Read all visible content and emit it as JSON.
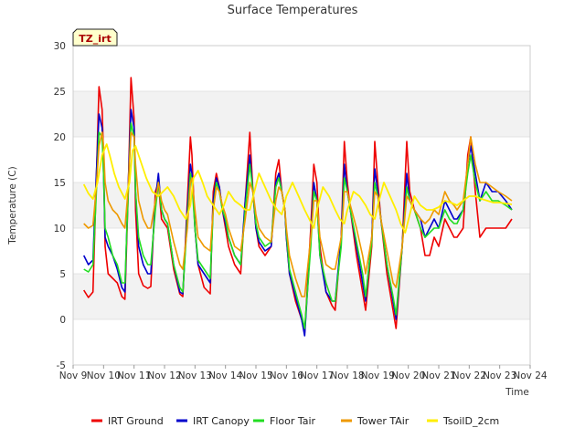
{
  "chart_data": {
    "type": "line",
    "title": "Surface Temperatures",
    "badge": "TZ_irt",
    "xlabel": "Time",
    "ylabel": "Temperature (C)",
    "xlim": [
      9,
      24
    ],
    "ylim": [
      -5,
      30
    ],
    "yticks": [
      -5,
      0,
      5,
      10,
      15,
      20,
      25,
      30
    ],
    "xticks": [
      {
        "x": 9,
        "label": "Nov 9"
      },
      {
        "x": 10,
        "label": "Nov 10"
      },
      {
        "x": 11,
        "label": "Nov 11"
      },
      {
        "x": 12,
        "label": "Nov 12"
      },
      {
        "x": 13,
        "label": "Nov 13"
      },
      {
        "x": 14,
        "label": "Nov 14"
      },
      {
        "x": 15,
        "label": "Nov 15"
      },
      {
        "x": 16,
        "label": "Nov 16"
      },
      {
        "x": 17,
        "label": "Nov 17"
      },
      {
        "x": 18,
        "label": "Nov 18"
      },
      {
        "x": 19,
        "label": "Nov 19"
      },
      {
        "x": 20,
        "label": "Nov 20"
      },
      {
        "x": 21,
        "label": "Nov 21"
      },
      {
        "x": 22,
        "label": "Nov 22"
      },
      {
        "x": 23,
        "label": "Nov 23"
      },
      {
        "x": 24,
        "label": "Nov 24"
      }
    ],
    "grid": true,
    "legend_position": "bottom",
    "series": [
      {
        "name": "IRT Ground",
        "color": "#ee0000",
        "x": [
          9.35,
          9.5,
          9.65,
          9.75,
          9.85,
          9.95,
          10.0,
          10.05,
          10.15,
          10.3,
          10.45,
          10.6,
          10.7,
          10.8,
          10.9,
          11.0,
          11.05,
          11.15,
          11.3,
          11.45,
          11.55,
          11.7,
          11.8,
          11.9,
          12.0,
          12.1,
          12.3,
          12.5,
          12.6,
          12.75,
          12.85,
          12.9,
          13.0,
          13.1,
          13.3,
          13.5,
          13.6,
          13.7,
          13.8,
          13.9,
          14.0,
          14.1,
          14.3,
          14.5,
          14.65,
          14.8,
          14.9,
          15.0,
          15.1,
          15.3,
          15.5,
          15.65,
          15.75,
          15.85,
          15.95,
          16.0,
          16.1,
          16.3,
          16.5,
          16.6,
          16.8,
          16.9,
          17.0,
          17.1,
          17.3,
          17.5,
          17.6,
          17.8,
          17.9,
          18.0,
          18.1,
          18.3,
          18.5,
          18.6,
          18.8,
          18.9,
          19.0,
          19.1,
          19.3,
          19.5,
          19.6,
          19.8,
          19.95,
          20.05,
          20.2,
          20.4,
          20.55,
          20.7,
          20.85,
          21.0,
          21.2,
          21.35,
          21.5,
          21.6,
          21.8,
          21.95,
          22.05,
          22.2,
          22.35,
          22.55,
          22.75,
          22.95,
          23.2,
          23.4
        ],
        "y": [
          3.2,
          2.4,
          3.0,
          14,
          25.5,
          23,
          18,
          8,
          5,
          4.5,
          4,
          2.5,
          2.2,
          13,
          26.5,
          22,
          12,
          5,
          3.7,
          3.4,
          3.6,
          14,
          15,
          11,
          10.5,
          10,
          5.5,
          2.8,
          2.5,
          13,
          20,
          18,
          10,
          6,
          3.5,
          2.8,
          14,
          16,
          14.5,
          12,
          10,
          8,
          6,
          5,
          13,
          20.5,
          14,
          10,
          8,
          7,
          8,
          16,
          17.5,
          14,
          12,
          9,
          5,
          2,
          0,
          -1.5,
          10,
          17,
          15,
          8,
          3,
          1.5,
          1,
          9,
          19.5,
          15,
          12,
          7,
          3,
          1,
          8,
          19.5,
          15,
          11,
          5,
          1,
          -1,
          8,
          19.5,
          14,
          12,
          10,
          7,
          7,
          9,
          8,
          11,
          10,
          9,
          9,
          10,
          18,
          20,
          14,
          9,
          10,
          10,
          10,
          10,
          11
        ]
      },
      {
        "name": "IRT Canopy",
        "color": "#0000cc",
        "x": [
          9.35,
          9.5,
          9.65,
          9.75,
          9.85,
          9.95,
          10.0,
          10.05,
          10.15,
          10.3,
          10.45,
          10.6,
          10.7,
          10.8,
          10.9,
          11.0,
          11.05,
          11.15,
          11.3,
          11.45,
          11.55,
          11.7,
          11.8,
          11.9,
          12.0,
          12.1,
          12.3,
          12.5,
          12.6,
          12.75,
          12.85,
          12.9,
          13.0,
          13.1,
          13.3,
          13.5,
          13.6,
          13.7,
          13.8,
          13.9,
          14.0,
          14.1,
          14.3,
          14.5,
          14.65,
          14.8,
          14.9,
          15.0,
          15.1,
          15.3,
          15.5,
          15.65,
          15.75,
          15.85,
          15.95,
          16.0,
          16.1,
          16.3,
          16.5,
          16.6,
          16.8,
          16.9,
          17.0,
          17.1,
          17.3,
          17.5,
          17.6,
          17.8,
          17.9,
          18.0,
          18.1,
          18.3,
          18.5,
          18.6,
          18.8,
          18.9,
          19.0,
          19.1,
          19.3,
          19.5,
          19.6,
          19.8,
          19.95,
          20.05,
          20.2,
          20.4,
          20.55,
          20.7,
          20.85,
          21.0,
          21.2,
          21.35,
          21.5,
          21.6,
          21.8,
          21.95,
          22.05,
          22.2,
          22.35,
          22.55,
          22.75,
          22.95,
          23.2,
          23.4
        ],
        "y": [
          7,
          6,
          6.5,
          15,
          22.5,
          21,
          16,
          9,
          8,
          7,
          5.5,
          3.5,
          3,
          14,
          23,
          21,
          14,
          8,
          6,
          5,
          5,
          13,
          16,
          12,
          11,
          10.5,
          6,
          3,
          2.8,
          12,
          17,
          16,
          10,
          6,
          5,
          4,
          13,
          15.5,
          14.5,
          12,
          10.5,
          9,
          7,
          6,
          13,
          18,
          14,
          10,
          8.5,
          7.5,
          8,
          15,
          16,
          14,
          12,
          9,
          5,
          2.5,
          0,
          -1.8,
          9,
          15,
          13,
          7,
          3,
          2,
          2,
          9,
          17,
          14,
          12,
          8,
          4,
          2,
          9,
          16.5,
          14,
          11,
          6,
          2,
          0,
          8,
          16,
          13,
          12,
          11,
          9,
          10,
          11,
          10,
          13,
          12,
          11,
          11,
          12,
          17,
          19,
          16,
          13,
          15,
          14,
          14,
          13,
          12
        ]
      },
      {
        "name": "Floor Tair",
        "color": "#22dd22",
        "x": [
          9.35,
          9.5,
          9.65,
          9.75,
          9.85,
          9.95,
          10.0,
          10.05,
          10.15,
          10.3,
          10.45,
          10.6,
          10.7,
          10.8,
          10.9,
          11.0,
          11.05,
          11.15,
          11.3,
          11.45,
          11.55,
          11.7,
          11.8,
          11.9,
          12.0,
          12.1,
          12.3,
          12.5,
          12.6,
          12.75,
          12.85,
          12.9,
          13.0,
          13.1,
          13.3,
          13.5,
          13.6,
          13.7,
          13.8,
          13.9,
          14.0,
          14.1,
          14.3,
          14.5,
          14.65,
          14.8,
          14.9,
          15.0,
          15.1,
          15.3,
          15.5,
          15.65,
          15.75,
          15.85,
          15.95,
          16.0,
          16.1,
          16.3,
          16.5,
          16.6,
          16.8,
          16.9,
          17.0,
          17.1,
          17.3,
          17.5,
          17.6,
          17.8,
          17.9,
          18.0,
          18.1,
          18.3,
          18.5,
          18.6,
          18.8,
          18.9,
          19.0,
          19.1,
          19.3,
          19.5,
          19.6,
          19.8,
          19.95,
          20.05,
          20.2,
          20.4,
          20.55,
          20.7,
          20.85,
          21.0,
          21.2,
          21.35,
          21.5,
          21.6,
          21.8,
          21.95,
          22.05,
          22.2,
          22.35,
          22.55,
          22.75,
          22.95,
          23.2,
          23.4
        ],
        "y": [
          5.5,
          5.2,
          6,
          13,
          20.5,
          20,
          16,
          10,
          9,
          7,
          6,
          4,
          4,
          13,
          21.5,
          20,
          14,
          9,
          7,
          6,
          6,
          12,
          15,
          12,
          11,
          10.5,
          6,
          3.5,
          3,
          11,
          16,
          15,
          10,
          6.5,
          5.5,
          4.5,
          12,
          15,
          14,
          12,
          11,
          9,
          7,
          6,
          12,
          17,
          14,
          10.5,
          9,
          8,
          8.5,
          14.5,
          15.5,
          14,
          12,
          9.5,
          5.5,
          3,
          0.5,
          -1,
          8,
          14,
          13,
          7,
          4,
          2,
          2,
          8,
          15.5,
          14,
          12,
          8.5,
          5,
          2.5,
          8.5,
          15,
          13.5,
          11,
          6,
          2.5,
          0.5,
          8,
          14.5,
          13,
          12,
          10,
          9,
          9.5,
          10,
          10,
          12,
          11,
          10.5,
          10.5,
          12,
          16,
          18,
          15,
          13,
          14,
          13,
          13,
          12.5,
          12
        ]
      },
      {
        "name": "Tower TAir",
        "color": "#ee9900",
        "x": [
          9.35,
          9.5,
          9.65,
          9.75,
          9.85,
          9.95,
          10.0,
          10.05,
          10.15,
          10.3,
          10.45,
          10.6,
          10.7,
          10.8,
          10.9,
          11.0,
          11.05,
          11.15,
          11.3,
          11.45,
          11.55,
          11.7,
          11.8,
          11.9,
          12.0,
          12.1,
          12.3,
          12.5,
          12.6,
          12.75,
          12.85,
          12.9,
          13.0,
          13.1,
          13.3,
          13.5,
          13.6,
          13.7,
          13.8,
          13.9,
          14.0,
          14.1,
          14.3,
          14.5,
          14.65,
          14.8,
          14.9,
          15.0,
          15.1,
          15.3,
          15.5,
          15.65,
          15.75,
          15.85,
          15.95,
          16.0,
          16.1,
          16.3,
          16.5,
          16.6,
          16.8,
          16.9,
          17.0,
          17.1,
          17.3,
          17.5,
          17.6,
          17.8,
          17.9,
          18.0,
          18.1,
          18.3,
          18.5,
          18.6,
          18.8,
          18.9,
          19.0,
          19.1,
          19.3,
          19.5,
          19.6,
          19.8,
          19.95,
          20.05,
          20.2,
          20.4,
          20.55,
          20.7,
          20.85,
          21.0,
          21.2,
          21.35,
          21.5,
          21.6,
          21.8,
          21.95,
          22.05,
          22.2,
          22.35,
          22.55,
          22.75,
          22.95,
          23.2,
          23.4
        ],
        "y": [
          10.5,
          10,
          10.3,
          14,
          19,
          20.5,
          19,
          15,
          13,
          12,
          11.5,
          10.5,
          10,
          14,
          20.5,
          20,
          17,
          13,
          11,
          10,
          10,
          13,
          15,
          13,
          12,
          11.5,
          8.5,
          6,
          5.5,
          10,
          15,
          15.5,
          12,
          9,
          8,
          7.5,
          12,
          14.5,
          14,
          12.5,
          11.5,
          10,
          8,
          7.5,
          11,
          15,
          14,
          11.5,
          10,
          9,
          8.5,
          13,
          14.5,
          14,
          12,
          10,
          7,
          4.5,
          2.5,
          2.5,
          9,
          13,
          13,
          9,
          6,
          5.5,
          5.5,
          9,
          14,
          14,
          12.5,
          10,
          7,
          5,
          9,
          14,
          13.5,
          11,
          7.5,
          4,
          3.5,
          8,
          13.5,
          13,
          12,
          11,
          10.5,
          11,
          12,
          11.5,
          14,
          13,
          12.5,
          12,
          13,
          17,
          20,
          17,
          15,
          15,
          14.5,
          14,
          13.5,
          13
        ]
      },
      {
        "name": "TsoilD_2cm",
        "color": "#ffee00",
        "x": [
          9.35,
          9.5,
          9.65,
          9.8,
          9.95,
          10.1,
          10.2,
          10.35,
          10.5,
          10.7,
          10.85,
          10.95,
          11.05,
          11.2,
          11.4,
          11.6,
          11.8,
          11.95,
          12.1,
          12.3,
          12.5,
          12.7,
          12.85,
          12.95,
          13.1,
          13.25,
          13.4,
          13.6,
          13.8,
          13.95,
          14.1,
          14.3,
          14.5,
          14.65,
          14.8,
          14.95,
          15.1,
          15.3,
          15.5,
          15.7,
          15.85,
          16.0,
          16.2,
          16.4,
          16.6,
          16.75,
          16.9,
          17.0,
          17.2,
          17.4,
          17.6,
          17.75,
          17.9,
          18.0,
          18.2,
          18.4,
          18.6,
          18.75,
          18.9,
          19.0,
          19.2,
          19.4,
          19.6,
          19.75,
          19.9,
          20.05,
          20.2,
          20.4,
          20.6,
          20.8,
          21.0,
          21.2,
          21.4,
          21.6,
          21.8,
          22.0,
          22.2,
          22.4,
          22.6,
          22.8,
          23.0,
          23.2,
          23.4
        ],
        "y": [
          14.8,
          13.8,
          13.2,
          15,
          18,
          19.2,
          18,
          16,
          14.5,
          13.2,
          15,
          18.5,
          19,
          17.5,
          15.5,
          14,
          13.5,
          14,
          14.5,
          13.5,
          12,
          11,
          12.5,
          15.5,
          16.3,
          15,
          13.5,
          12.5,
          11.5,
          12.5,
          14,
          13,
          12.5,
          12,
          12,
          14,
          16,
          14.5,
          13,
          12,
          11.5,
          13.5,
          15,
          13.5,
          12,
          11,
          10,
          12,
          14.5,
          13.5,
          12,
          11,
          10.5,
          12,
          14,
          13.5,
          12.5,
          11.5,
          11,
          12.5,
          15,
          13.5,
          12,
          10.5,
          9.5,
          11.5,
          13.5,
          12.5,
          12,
          12,
          12.3,
          13,
          12.8,
          12.5,
          13,
          13.5,
          13.5,
          13.2,
          13,
          12.8,
          12.8,
          12.7,
          12.6
        ]
      }
    ]
  }
}
